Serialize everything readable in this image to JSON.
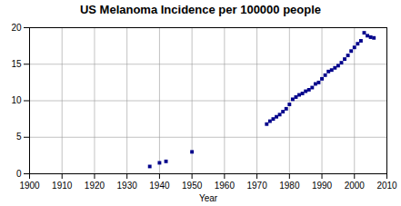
{
  "chart_data": {
    "type": "scatter",
    "title": "US Melanoma Incidence per 100000 people",
    "xlabel": "Year",
    "x": [
      1937,
      1940,
      1942,
      1950,
      1973,
      1974,
      1975,
      1976,
      1977,
      1978,
      1979,
      1980,
      1981,
      1982,
      1983,
      1984,
      1985,
      1986,
      1987,
      1988,
      1989,
      1990,
      1991,
      1992,
      1993,
      1994,
      1995,
      1996,
      1997,
      1998,
      1999,
      2000,
      2001,
      2002,
      2003,
      2004,
      2005,
      2006
    ],
    "values": [
      1.0,
      1.5,
      1.7,
      3.0,
      6.8,
      7.2,
      7.5,
      7.8,
      8.1,
      8.5,
      8.9,
      9.5,
      10.2,
      10.5,
      10.8,
      11.0,
      11.3,
      11.5,
      11.8,
      12.3,
      12.5,
      13.0,
      13.5,
      14.0,
      14.2,
      14.5,
      14.8,
      15.2,
      15.7,
      16.2,
      16.8,
      17.3,
      17.8,
      18.2,
      19.3,
      18.9,
      18.7,
      18.6
    ],
    "color": "#00008B",
    "marker": "square",
    "xlim": [
      1900,
      2010
    ],
    "ylim": [
      0,
      20
    ],
    "xticks": [
      1900,
      1910,
      1920,
      1930,
      1940,
      1950,
      1960,
      1970,
      1980,
      1990,
      2000,
      2010
    ],
    "yticks": [
      0,
      5,
      10,
      15,
      20
    ],
    "grid": true
  }
}
